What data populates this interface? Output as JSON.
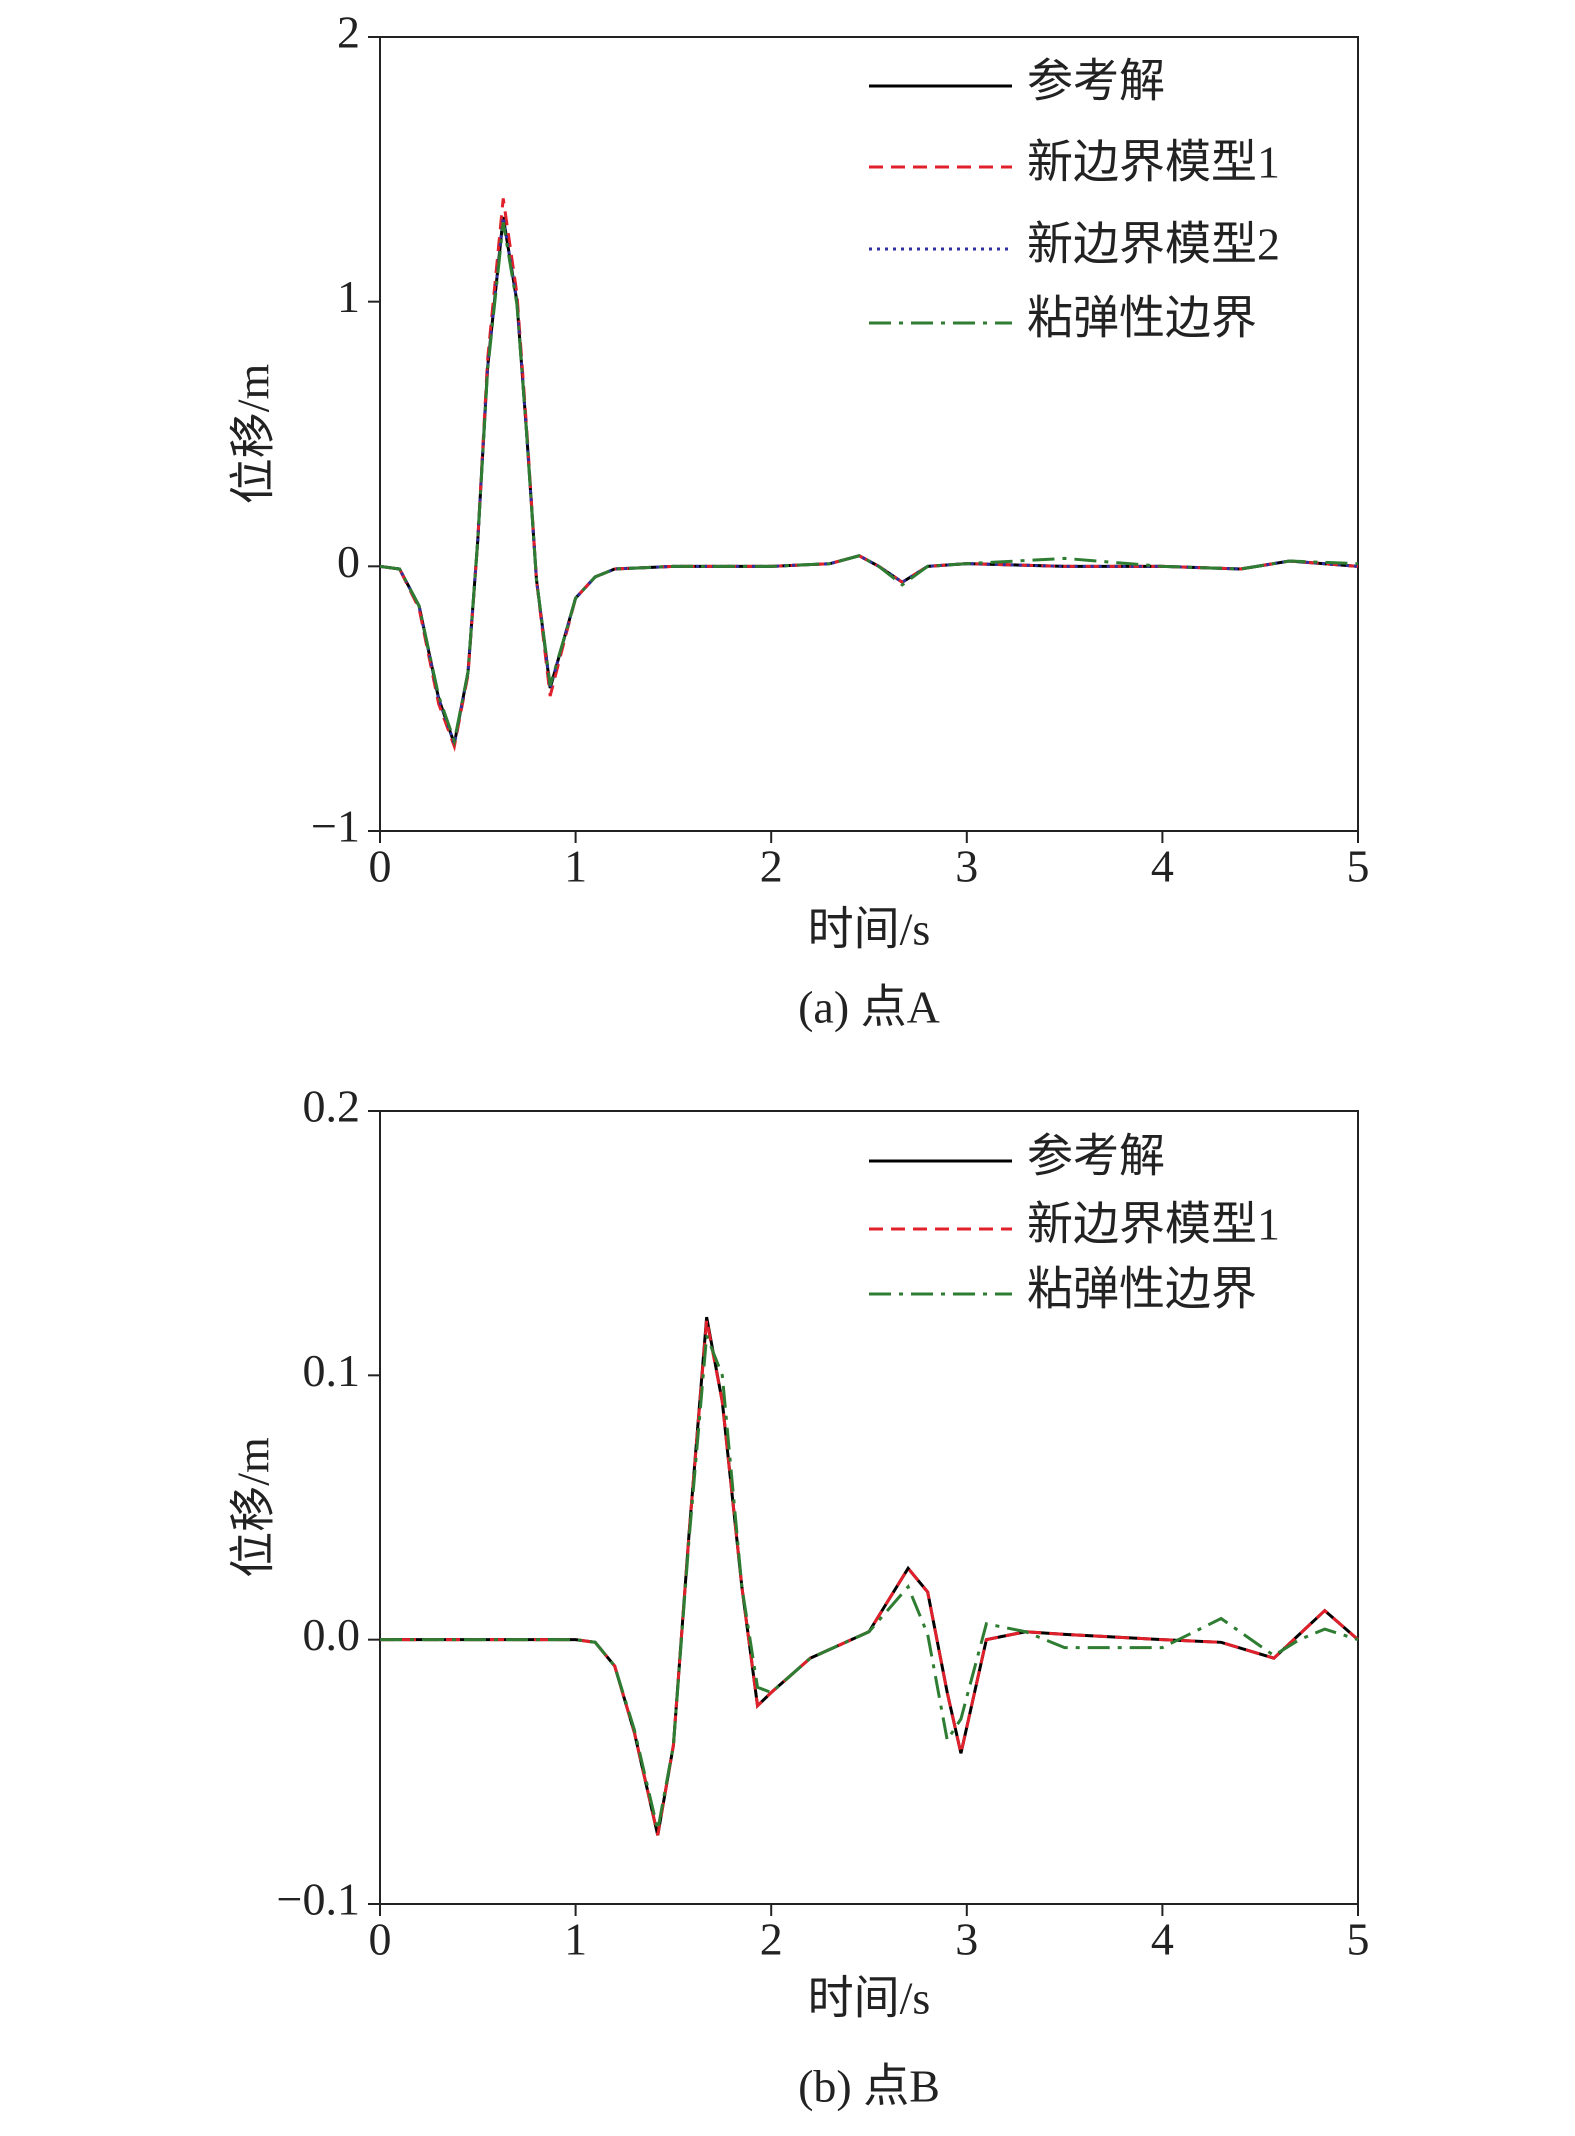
{
  "chart_data": [
    {
      "type": "line",
      "title": "(a) 点A",
      "xlabel": "时间/s",
      "ylabel": "位移/m",
      "x": [
        0,
        0.1,
        0.2,
        0.3,
        0.38,
        0.45,
        0.5,
        0.55,
        0.63,
        0.7,
        0.75,
        0.8,
        0.87,
        0.95,
        1.0,
        1.1,
        1.2,
        1.5,
        2.0,
        2.3,
        2.45,
        2.55,
        2.67,
        2.8,
        3.0,
        3.5,
        4.0,
        4.4,
        4.65,
        5.0
      ],
      "xlim": [
        0,
        5
      ],
      "xticks": [
        0,
        1,
        2,
        3,
        4,
        5
      ],
      "ylim": [
        -1,
        2
      ],
      "yticks": [
        {
          "value": -1,
          "label": "−1"
        },
        0,
        1,
        2
      ],
      "legend": "upper right",
      "series": [
        {
          "name": "参考解",
          "color": "#000000",
          "dash": "solid",
          "values": [
            0,
            -0.01,
            -0.15,
            -0.5,
            -0.67,
            -0.4,
            0.1,
            0.75,
            1.32,
            1.0,
            0.5,
            -0.05,
            -0.46,
            -0.25,
            -0.12,
            -0.04,
            -0.01,
            0,
            0,
            0.01,
            0.04,
            0.0,
            -0.06,
            0.0,
            0.01,
            0.0,
            0.0,
            -0.01,
            0.02,
            0.0
          ]
        },
        {
          "name": "新边界模型1",
          "color": "#e0202a",
          "dash": "dashed",
          "values": [
            0,
            -0.01,
            -0.16,
            -0.52,
            -0.68,
            -0.41,
            0.1,
            0.78,
            1.39,
            1.03,
            0.52,
            -0.05,
            -0.49,
            -0.26,
            -0.12,
            -0.04,
            -0.01,
            0,
            0,
            0.01,
            0.04,
            0.0,
            -0.06,
            0.0,
            0.01,
            0.0,
            0.0,
            -0.01,
            0.02,
            0.0
          ]
        },
        {
          "name": "新边界模型2",
          "color": "#3030a0",
          "dash": "dotted",
          "values": [
            0,
            -0.01,
            -0.15,
            -0.5,
            -0.67,
            -0.4,
            0.1,
            0.75,
            1.32,
            1.0,
            0.5,
            -0.05,
            -0.46,
            -0.25,
            -0.12,
            -0.04,
            -0.01,
            0,
            0,
            0.01,
            0.04,
            0.0,
            -0.06,
            0.0,
            0.01,
            0.0,
            0.0,
            -0.01,
            0.02,
            0.0
          ]
        },
        {
          "name": "粘弹性边界",
          "color": "#2e7d32",
          "dash": "dashdot",
          "values": [
            0,
            -0.01,
            -0.15,
            -0.49,
            -0.66,
            -0.4,
            0.1,
            0.74,
            1.3,
            0.99,
            0.5,
            -0.05,
            -0.45,
            -0.25,
            -0.12,
            -0.04,
            -0.01,
            0,
            0,
            0.01,
            0.04,
            0.0,
            -0.07,
            0.0,
            0.01,
            0.03,
            0.0,
            -0.01,
            0.02,
            0.01
          ]
        }
      ]
    },
    {
      "type": "line",
      "title": "(b) 点B",
      "xlabel": "时间/s",
      "ylabel": "位移/m",
      "x": [
        0,
        0.5,
        1.0,
        1.1,
        1.2,
        1.3,
        1.42,
        1.5,
        1.58,
        1.67,
        1.75,
        1.85,
        1.93,
        2.0,
        2.2,
        2.5,
        2.7,
        2.8,
        2.9,
        2.97,
        3.1,
        3.3,
        3.5,
        4.0,
        4.3,
        4.57,
        4.7,
        4.83,
        5.0
      ],
      "xlim": [
        0,
        5
      ],
      "xticks": [
        0,
        1,
        2,
        3,
        4,
        5
      ],
      "ylim": [
        -0.1,
        0.2
      ],
      "yticks": [
        {
          "value": -0.1,
          "label": "−0.1"
        },
        {
          "value": 0,
          "label": "0.0"
        },
        0.1,
        0.2
      ],
      "legend": "upper right",
      "series": [
        {
          "name": "参考解",
          "color": "#000000",
          "dash": "solid",
          "values": [
            0,
            0,
            0,
            -0.001,
            -0.01,
            -0.035,
            -0.074,
            -0.04,
            0.04,
            0.122,
            0.09,
            0.02,
            -0.025,
            -0.02,
            -0.007,
            0.003,
            0.027,
            0.018,
            -0.02,
            -0.043,
            0.0,
            0.003,
            0.002,
            0.0,
            -0.001,
            -0.007,
            0.002,
            0.011,
            0.0
          ]
        },
        {
          "name": "新边界模型1",
          "color": "#e0202a",
          "dash": "dashed",
          "values": [
            0,
            0,
            0,
            -0.001,
            -0.01,
            -0.035,
            -0.074,
            -0.04,
            0.04,
            0.121,
            0.09,
            0.02,
            -0.025,
            -0.02,
            -0.007,
            0.003,
            0.027,
            0.018,
            -0.02,
            -0.043,
            0.0,
            0.003,
            0.002,
            0.0,
            -0.001,
            -0.007,
            0.002,
            0.011,
            0.0
          ]
        },
        {
          "name": "粘弹性边界",
          "color": "#2e7d32",
          "dash": "dashdot",
          "values": [
            0,
            0,
            0,
            -0.001,
            -0.01,
            -0.034,
            -0.072,
            -0.04,
            0.038,
            0.115,
            0.1,
            0.02,
            -0.018,
            -0.02,
            -0.007,
            0.003,
            0.02,
            0.002,
            -0.038,
            -0.03,
            0.006,
            0.003,
            -0.003,
            -0.003,
            0.008,
            -0.006,
            0.0,
            0.004,
            0.0
          ]
        }
      ]
    }
  ]
}
